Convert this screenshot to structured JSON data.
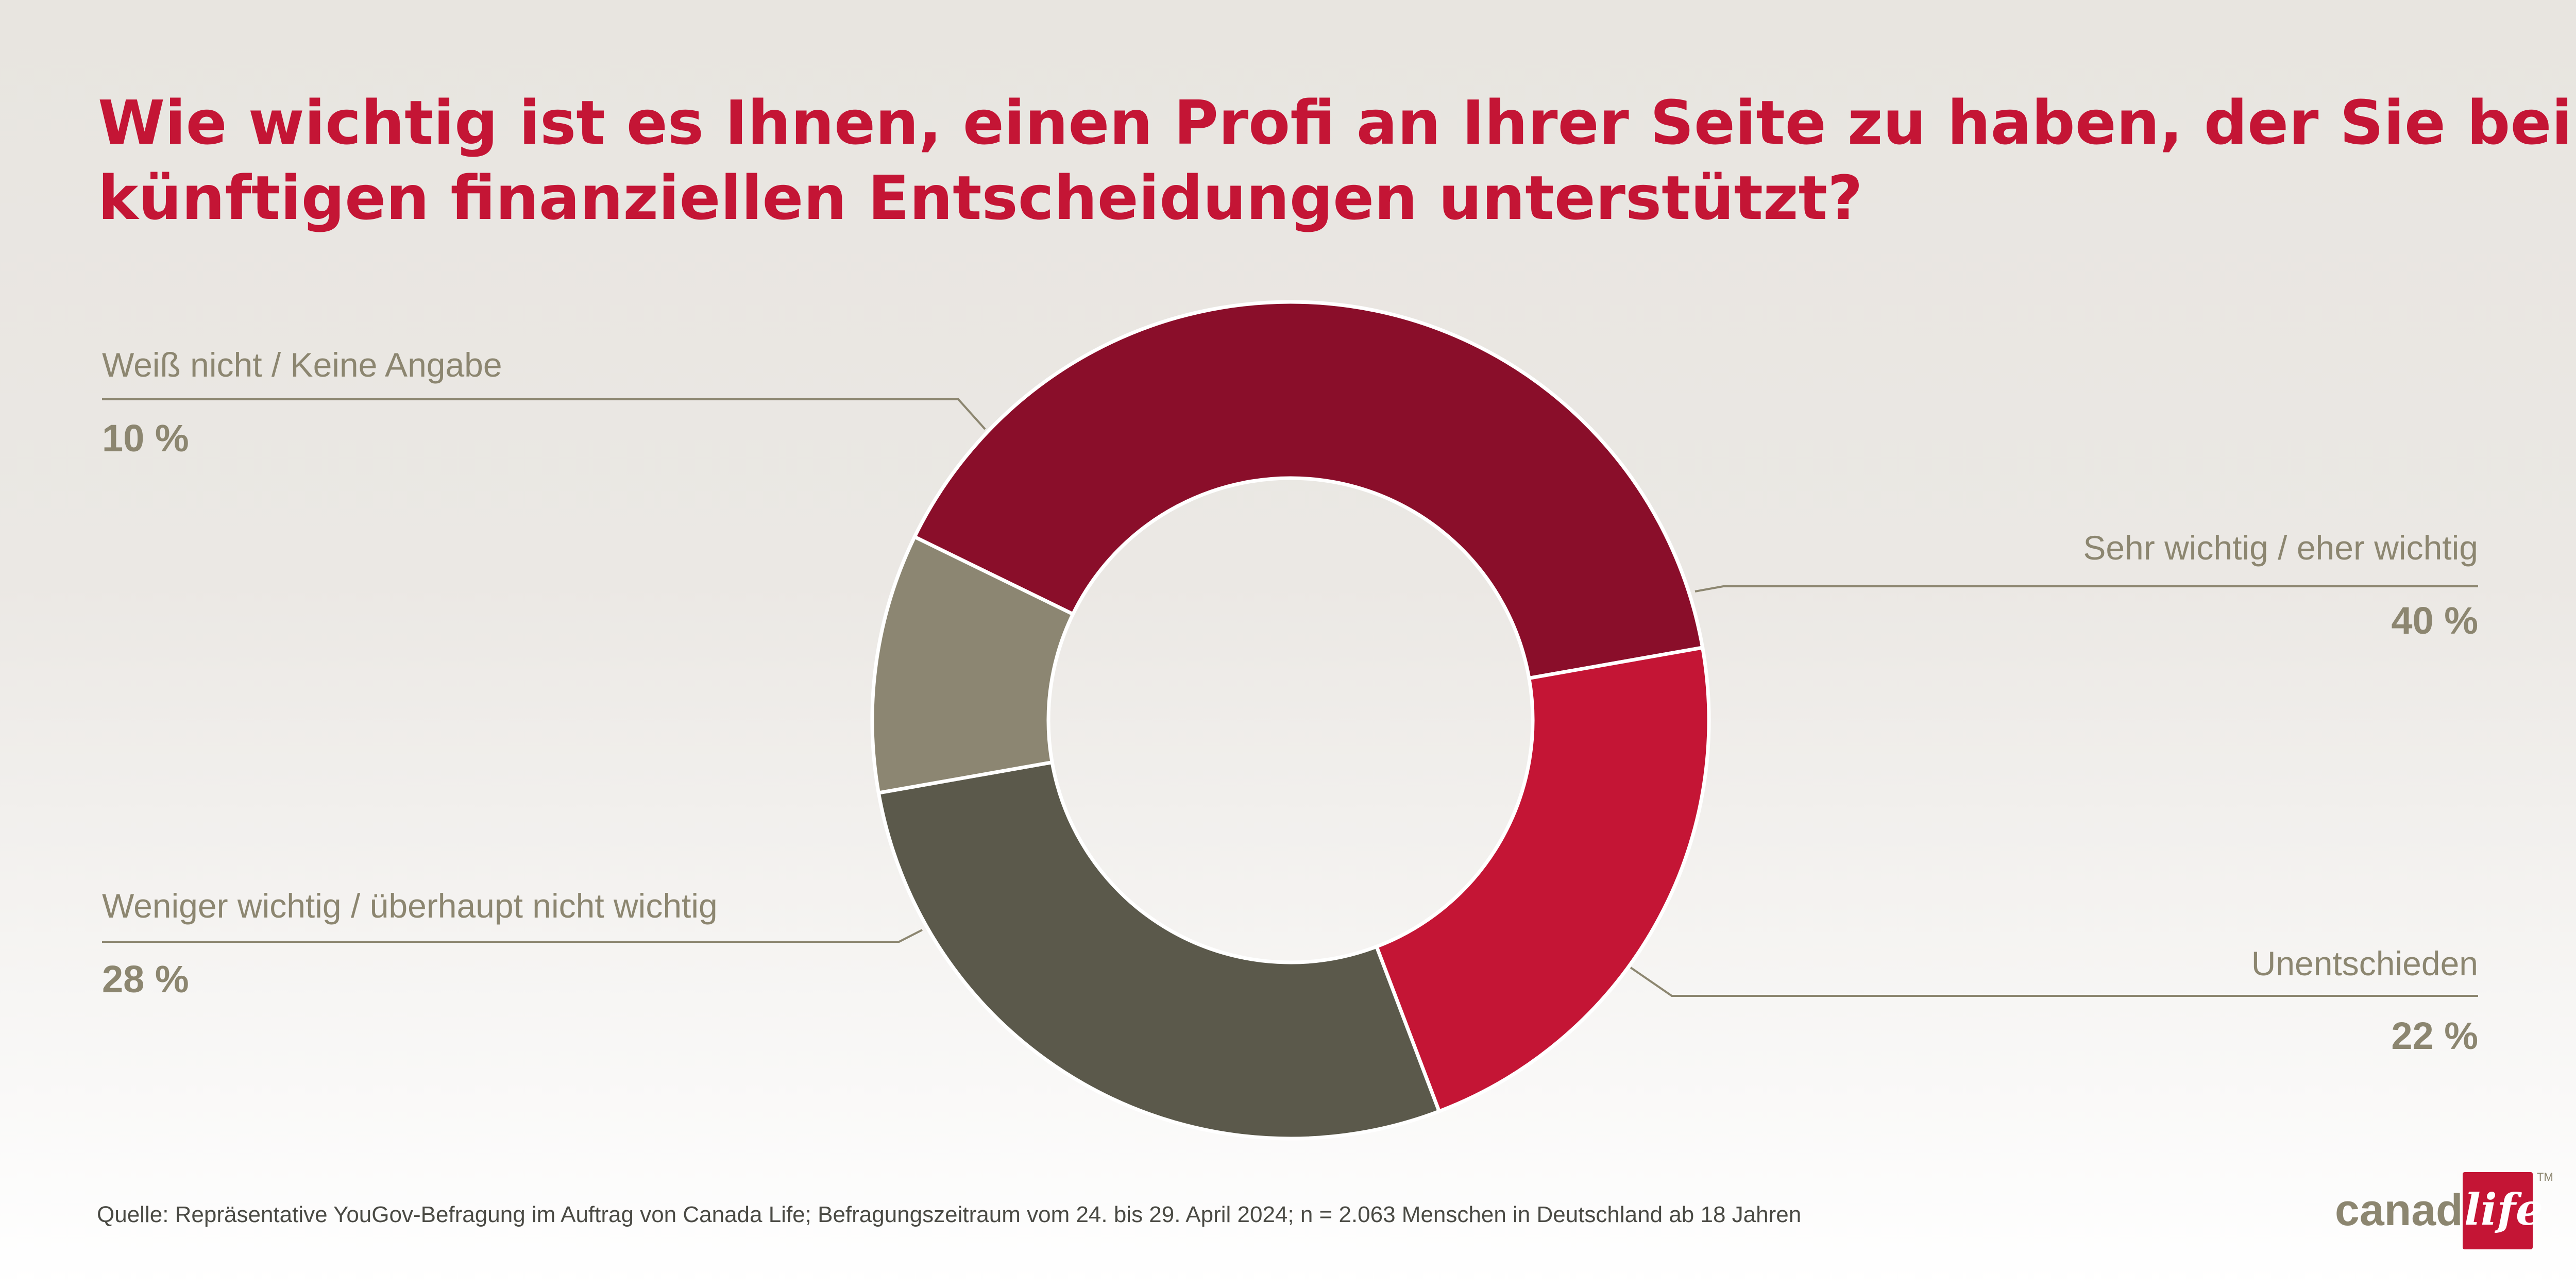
{
  "title": {
    "line1": "Wie wichtig ist es Ihnen, einen Profi an Ihrer Seite zu haben, der Sie bei",
    "line2": "künftigen finanziellen Entscheidungen unterstützt?"
  },
  "chart_data": {
    "type": "pie",
    "variant": "donut",
    "slices": [
      {
        "label": "Sehr wichtig / eher wichtig",
        "value": 40,
        "value_label": "40 %",
        "color": "#8a0e2a"
      },
      {
        "label": "Unentschieden",
        "value": 22,
        "value_label": "22 %",
        "color": "#c41535"
      },
      {
        "label": "Weniger wichtig / überhaupt nicht wichtig",
        "value": 28,
        "value_label": "28 %",
        "color": "#5b594b"
      },
      {
        "label": "Weiß nicht / Keine Angabe",
        "value": 10,
        "value_label": "10 %",
        "color": "#8c8672"
      }
    ],
    "legend": "none",
    "label_color": "#8c8670"
  },
  "source": "Quelle: Repräsentative YouGov-Befragung im Auftrag von Canada Life; Befragungszeitraum vom 24. bis 29. April 2024; n = 2.063 Menschen in Deutschland ab 18 Jahren",
  "logo": {
    "text": "canada life",
    "brand_color": "#c41535",
    "trademark": "TM"
  }
}
